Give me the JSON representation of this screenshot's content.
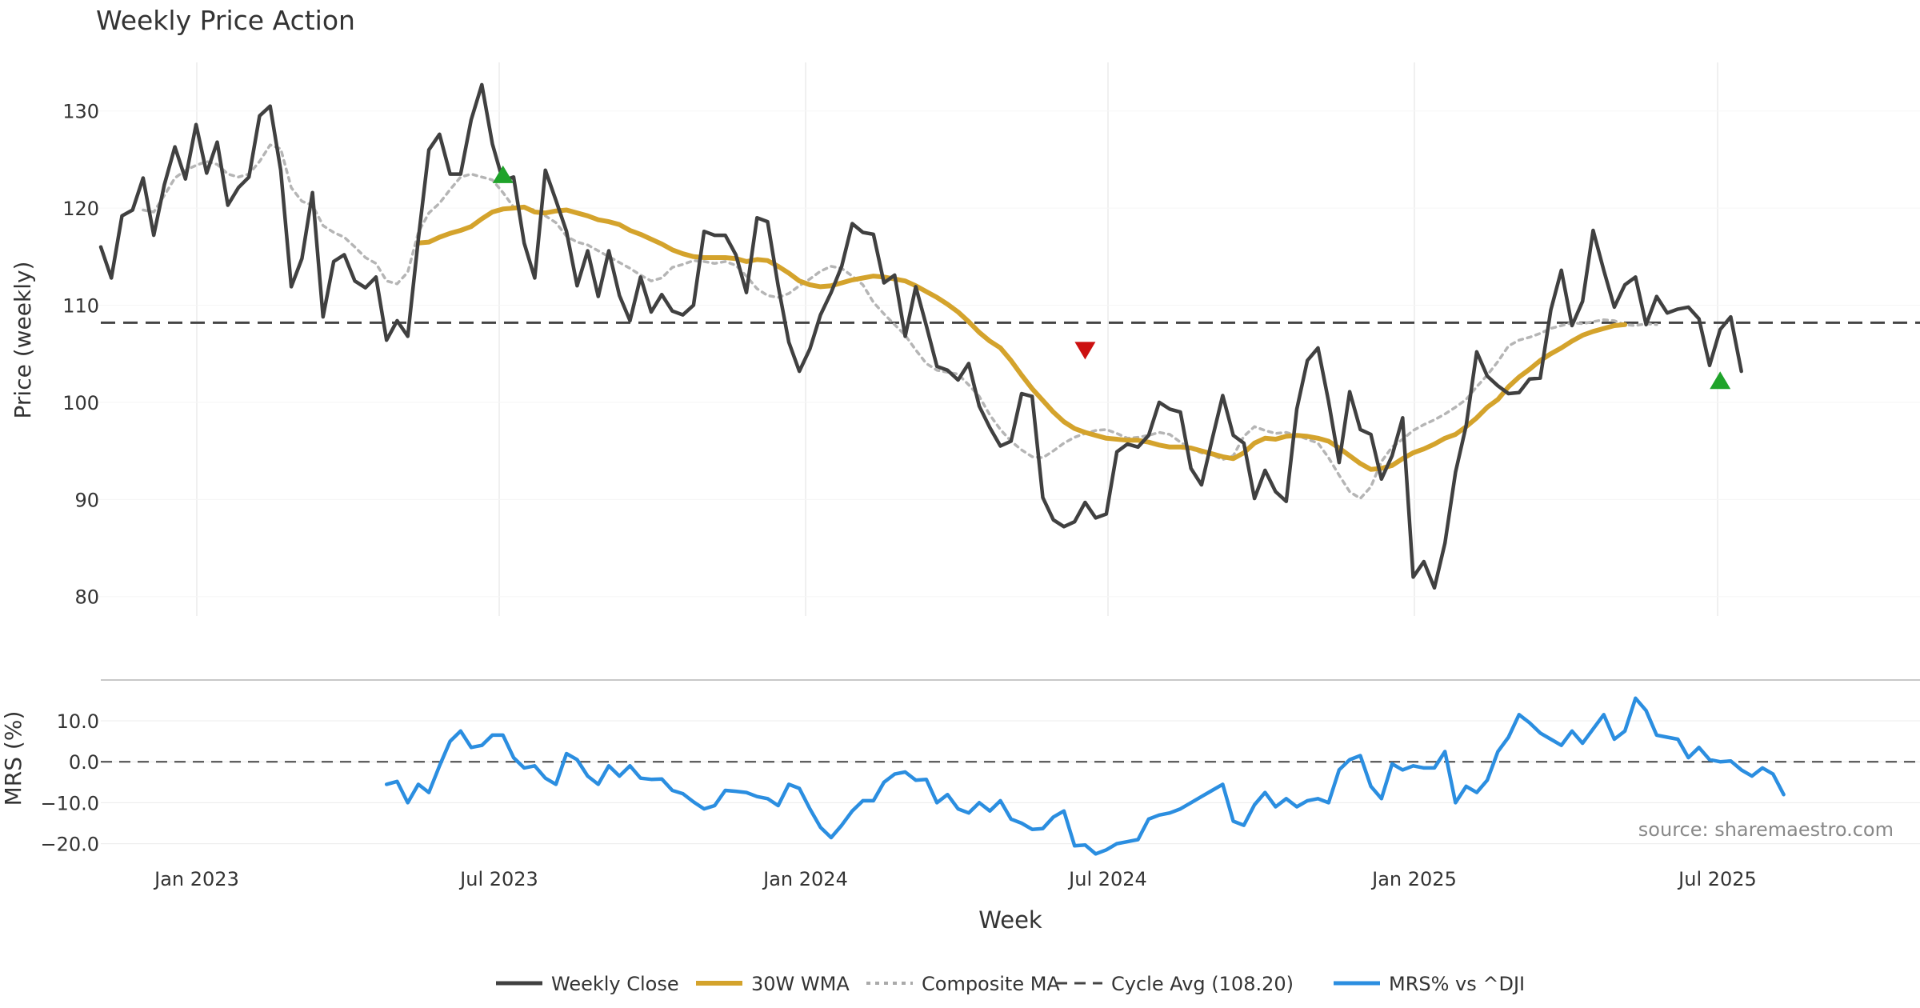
{
  "chart_data": {
    "type": "line",
    "title": "Weekly Price Action",
    "xlabel": "Week",
    "source": "source: sharemaestro.com",
    "x_ticks": [
      "Jan 2023",
      "Jul 2023",
      "Jan 2024",
      "Jul 2024",
      "Jan 2025",
      "Jul 2025"
    ],
    "price_panel": {
      "ylabel": "Price (weekly)",
      "ylim": [
        78,
        135
      ],
      "y_ticks": [
        "80",
        "90",
        "100",
        "110",
        "120",
        "130"
      ],
      "cycle_avg": 108.2,
      "weekly_close": {
        "name": "Weekly Close",
        "start_week": 0,
        "color": "#404040",
        "values": [
          116.0,
          112.8,
          119.2,
          119.8,
          123.1,
          117.2,
          122.4,
          126.3,
          123.0,
          128.6,
          123.6,
          126.8,
          120.3,
          122.1,
          123.2,
          129.5,
          130.5,
          123.9,
          111.9,
          114.8,
          121.6,
          108.8,
          114.5,
          115.2,
          112.5,
          111.8,
          112.9,
          106.4,
          108.4,
          106.8,
          116.8,
          126.0,
          127.6,
          123.5,
          123.5,
          129.1,
          132.7,
          126.6,
          122.8,
          123.2,
          116.4,
          112.8,
          123.9,
          120.8,
          117.6,
          112.0,
          115.6,
          110.9,
          115.6,
          111.0,
          108.4,
          112.9,
          109.3,
          111.1,
          109.4,
          109.0,
          110.0,
          117.6,
          117.2,
          117.2,
          115.2,
          111.3,
          119.0,
          118.6,
          112.0,
          106.2,
          103.2,
          105.5,
          109.0,
          111.3,
          114.0,
          118.4,
          117.5,
          117.3,
          112.3,
          113.1,
          106.8,
          111.9,
          107.9,
          103.7,
          103.3,
          102.3,
          104.0,
          99.6,
          97.4,
          95.5,
          96.0,
          100.9,
          100.6,
          90.2,
          87.9,
          87.2,
          87.7,
          89.7,
          88.1,
          88.5,
          94.9,
          95.7,
          95.4,
          96.6,
          100.0,
          99.3,
          99.0,
          93.2,
          91.5,
          96.2,
          100.7,
          96.6,
          95.8,
          90.1,
          93.0,
          90.8,
          89.8,
          99.3,
          104.3,
          105.6,
          100.1,
          93.8,
          101.1,
          97.2,
          96.7,
          92.1,
          94.5,
          98.4,
          82.0,
          83.6,
          80.9,
          85.5,
          92.8,
          97.6,
          105.2,
          102.7,
          101.7,
          100.9,
          101.0,
          102.4,
          102.5,
          109.5,
          113.6,
          107.9,
          110.4,
          117.7,
          113.6,
          109.8,
          112.1,
          112.9,
          108.0,
          110.9,
          109.2,
          109.6,
          109.8,
          108.6,
          103.8,
          107.5,
          108.8,
          103.2
        ]
      },
      "wma30": {
        "name": "30W WMA",
        "start_week": 30,
        "color": "#d4a32c",
        "values": [
          116.4,
          116.5,
          117.0,
          117.4,
          117.7,
          118.1,
          118.9,
          119.6,
          119.9,
          120.0,
          120.1,
          119.6,
          119.5,
          119.7,
          119.8,
          119.5,
          119.2,
          118.8,
          118.6,
          118.3,
          117.7,
          117.3,
          116.8,
          116.3,
          115.7,
          115.3,
          115.0,
          114.9,
          114.9,
          114.9,
          114.8,
          114.5,
          114.7,
          114.6,
          114.0,
          113.3,
          112.5,
          112.1,
          111.9,
          112.0,
          112.3,
          112.6,
          112.8,
          113.0,
          112.9,
          112.7,
          112.5,
          112.0,
          111.4,
          110.8,
          110.1,
          109.3,
          108.3,
          107.2,
          106.3,
          105.6,
          104.3,
          102.8,
          101.4,
          100.2,
          99.0,
          98.0,
          97.3,
          96.9,
          96.6,
          96.3,
          96.2,
          96.1,
          96.1,
          95.9,
          95.6,
          95.4,
          95.4,
          95.3,
          95.0,
          94.7,
          94.4,
          94.2,
          94.8,
          95.8,
          96.3,
          96.2,
          96.5,
          96.6,
          96.5,
          96.3,
          96.0,
          95.3,
          94.5,
          93.7,
          93.1,
          93.2,
          93.5,
          94.2,
          94.8,
          95.2,
          95.7,
          96.3,
          96.7,
          97.5,
          98.4,
          99.5,
          100.3,
          101.6,
          102.6,
          103.4,
          104.3,
          105.0,
          105.6,
          106.3,
          106.9,
          107.3,
          107.6,
          107.9,
          108.0
        ]
      },
      "composite_ma": {
        "name": "Composite MA",
        "start_week": 4,
        "color": "#b5b5b5",
        "values": [
          119.8,
          119.6,
          121.3,
          123.1,
          123.9,
          124.4,
          124.8,
          124.5,
          123.5,
          123.2,
          123.5,
          124.8,
          126.5,
          126.1,
          122.1,
          120.7,
          120.3,
          118.2,
          117.5,
          117.0,
          116.0,
          114.9,
          114.3,
          112.5,
          112.2,
          113.4,
          117.5,
          119.5,
          120.5,
          121.9,
          123.2,
          123.5,
          123.2,
          122.9,
          121.6,
          120.1,
          120.0,
          119.8,
          119.2,
          118.5,
          117.1,
          116.5,
          116.2,
          115.6,
          115.0,
          114.4,
          113.8,
          113.1,
          112.5,
          112.8,
          113.9,
          114.2,
          114.6,
          114.5,
          114.3,
          114.5,
          114.1,
          113.0,
          111.7,
          111.0,
          110.8,
          111.2,
          112.0,
          112.7,
          113.5,
          114.0,
          113.8,
          113.0,
          112.1,
          110.3,
          109.1,
          108.0,
          106.9,
          105.4,
          104.0,
          103.3,
          103.1,
          102.9,
          101.8,
          100.6,
          98.7,
          97.2,
          96.0,
          95.1,
          94.4,
          94.3,
          95.0,
          95.8,
          96.4,
          96.8,
          97.1,
          97.2,
          96.8,
          96.3,
          96.4,
          96.6,
          96.9,
          96.7,
          95.9,
          95.2,
          94.8,
          94.6,
          94.1,
          94.5,
          96.5,
          97.5,
          97.1,
          96.8,
          96.9,
          96.6,
          96.2,
          95.8,
          94.3,
          92.5,
          90.8,
          90.1,
          91.3,
          93.9,
          95.4,
          96.2,
          97.1,
          97.7,
          98.2,
          98.8,
          99.5,
          100.3,
          101.6,
          102.8,
          104.2,
          105.8,
          106.4,
          106.7,
          107.1,
          107.6,
          107.9,
          108.2,
          108.1,
          108.3,
          108.5,
          108.4,
          108.0,
          107.9,
          108.1,
          108.0
        ]
      },
      "signals": [
        {
          "week": 38,
          "type": "buy",
          "price": 123.4,
          "color": "#1fa32a"
        },
        {
          "week": 93,
          "type": "sell",
          "price": 105.4,
          "color": "#cc1111"
        },
        {
          "week": 153,
          "type": "buy",
          "price": 102.2,
          "color": "#1fa32a"
        }
      ]
    },
    "mrs_panel": {
      "ylabel": "MRS (%)",
      "ylim": [
        -23,
        18
      ],
      "y_ticks": [
        "10.0",
        "0.0",
        "−10.0",
        "−20.0"
      ],
      "mrs": {
        "name": "MRS% vs ^DJI",
        "start_week": 27,
        "color": "#2b8ee0",
        "values": [
          -5.5,
          -4.8,
          -10.0,
          -5.5,
          -7.5,
          -1.0,
          5.0,
          7.5,
          3.5,
          4.0,
          6.5,
          6.5,
          1.0,
          -1.5,
          -1.0,
          -4.0,
          -5.5,
          2.0,
          0.5,
          -3.5,
          -5.5,
          -1.0,
          -3.5,
          -1.0,
          -4.0,
          -4.3,
          -4.2,
          -7.0,
          -7.8,
          -9.8,
          -11.5,
          -10.7,
          -7.0,
          -7.2,
          -7.5,
          -8.5,
          -9.0,
          -10.7,
          -5.5,
          -6.5,
          -11.5,
          -16.0,
          -18.5,
          -15.5,
          -12.0,
          -9.5,
          -9.5,
          -5.0,
          -3.0,
          -2.5,
          -4.5,
          -4.3,
          -10.0,
          -8.0,
          -11.5,
          -12.5,
          -10.0,
          -12.0,
          -9.5,
          -14.0,
          -15.0,
          -16.5,
          -16.3,
          -13.5,
          -12.0,
          -20.5,
          -20.3,
          -22.5,
          -21.5,
          -20.0,
          -19.5,
          -19.0,
          -14.0,
          -13.0,
          -12.5,
          -11.5,
          -10.0,
          -8.5,
          -7.0,
          -5.5,
          -14.5,
          -15.5,
          -10.5,
          -7.5,
          -11.0,
          -9.0,
          -11.0,
          -9.5,
          -9.0,
          -10.0,
          -2.0,
          0.5,
          1.5,
          -6.0,
          -9.0,
          -0.5,
          -2.0,
          -1.0,
          -1.5,
          -1.5,
          2.5,
          -10.0,
          -6.0,
          -7.5,
          -4.5,
          2.5,
          6.0,
          11.5,
          9.5,
          7.0,
          5.5,
          4.0,
          7.5,
          4.5,
          8.0,
          11.5,
          5.5,
          7.5,
          15.5,
          12.5,
          6.5,
          6.0,
          5.5,
          1.0,
          3.5,
          0.5,
          0.0,
          0.2,
          -2.0,
          -3.5,
          -1.5,
          -3.0,
          -8.0
        ]
      }
    },
    "legend": [
      "Weekly Close",
      "30W WMA",
      "Composite MA",
      "Cycle Avg (108.20)",
      "MRS% vs ^DJI"
    ]
  }
}
